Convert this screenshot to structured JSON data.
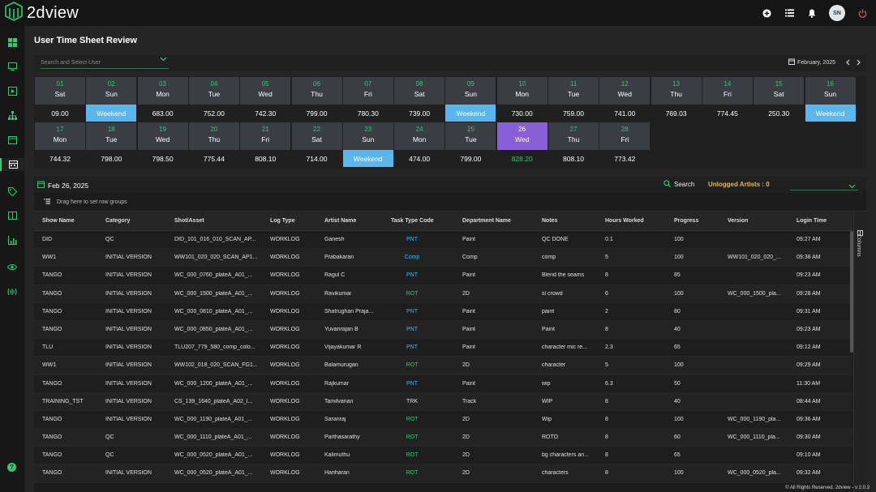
{
  "app": {
    "name": "2dview",
    "avatar_initials": "SN"
  },
  "page": {
    "title": "User Time Sheet Review"
  },
  "toolbar": {
    "user_placeholder": "Search and Select User",
    "month_label": "February, 2025"
  },
  "calendar": {
    "days": [
      {
        "num": "01",
        "name": "Sat",
        "value": "09.00",
        "weekend": false
      },
      {
        "num": "02",
        "name": "Sun",
        "value": "Weekend",
        "weekend": true
      },
      {
        "num": "03",
        "name": "Mon",
        "value": "683.00",
        "weekend": false
      },
      {
        "num": "04",
        "name": "Tue",
        "value": "752.00",
        "weekend": false
      },
      {
        "num": "05",
        "name": "Wed",
        "value": "742.30",
        "weekend": false
      },
      {
        "num": "06",
        "name": "Thu",
        "value": "799.00",
        "weekend": false
      },
      {
        "num": "07",
        "name": "Fri",
        "value": "780.30",
        "weekend": false
      },
      {
        "num": "08",
        "name": "Sat",
        "value": "739.00",
        "weekend": false
      },
      {
        "num": "09",
        "name": "Sun",
        "value": "Weekend",
        "weekend": true
      },
      {
        "num": "10",
        "name": "Mon",
        "value": "730.00",
        "weekend": false
      },
      {
        "num": "11",
        "name": "Tue",
        "value": "759.00",
        "weekend": false
      },
      {
        "num": "12",
        "name": "Wed",
        "value": "741.00",
        "weekend": false
      },
      {
        "num": "13",
        "name": "Thu",
        "value": "769.03",
        "weekend": false
      },
      {
        "num": "14",
        "name": "Fri",
        "value": "774.45",
        "weekend": false
      },
      {
        "num": "15",
        "name": "Sat",
        "value": "250.30",
        "weekend": false
      },
      {
        "num": "16",
        "name": "Sun",
        "value": "Weekend",
        "weekend": true
      },
      {
        "num": "17",
        "name": "Mon",
        "value": "744.32",
        "weekend": false
      },
      {
        "num": "18",
        "name": "Tue",
        "value": "798.00",
        "weekend": false
      },
      {
        "num": "19",
        "name": "Wed",
        "value": "798.50",
        "weekend": false
      },
      {
        "num": "20",
        "name": "Thu",
        "value": "775.44",
        "weekend": false
      },
      {
        "num": "21",
        "name": "Fri",
        "value": "808.10",
        "weekend": false
      },
      {
        "num": "22",
        "name": "Sat",
        "value": "714.00",
        "weekend": false
      },
      {
        "num": "23",
        "name": "Sun",
        "value": "Weekend",
        "weekend": true
      },
      {
        "num": "24",
        "name": "Mon",
        "value": "474.00",
        "weekend": false
      },
      {
        "num": "25",
        "name": "Tue",
        "value": "799.00",
        "weekend": false
      },
      {
        "num": "26",
        "name": "Wed",
        "value": "828.20",
        "weekend": false,
        "selected": true
      },
      {
        "num": "27",
        "name": "Thu",
        "value": "808.10",
        "weekend": false
      },
      {
        "num": "28",
        "name": "Fri",
        "value": "773.42",
        "weekend": false
      }
    ]
  },
  "datebar": {
    "date": "Feb 26, 2025",
    "search_label": "Search",
    "unlogged_label": "Unlogged Artists : 0"
  },
  "grid": {
    "group_hint": "Drag here to set row groups",
    "columns_label": "Columns",
    "headers": [
      "Show Name",
      "Category",
      "Shot/Asset",
      "Log Type",
      "Artist Name",
      "Task Type Code",
      "Department Name",
      "Notes",
      "Hours Worked",
      "Progress",
      "Version",
      "Login Time"
    ],
    "rows": [
      [
        "DID",
        "QC",
        "DID_101_016_010_SCAN_AP...",
        "WORKLOG",
        "Ganesh",
        "PNT",
        "Paint",
        "QC DONE",
        "0.1",
        "100",
        "",
        "09:27 AM"
      ],
      [
        "WW1",
        "INITIAL VERSION",
        "WW101_020_020_SCAN_AP1...",
        "WORKLOG",
        "Prabakaran",
        "Comp",
        "Comp",
        "comp",
        "5",
        "100",
        "WW101_020_020_...",
        "09:38 AM"
      ],
      [
        "TANGO",
        "INITIAL VERSION",
        "WC_000_0760_plateA_A01_...",
        "WORKLOG",
        "Ragul C",
        "PNT",
        "Paint",
        "Blend the seams",
        "8",
        "85",
        "",
        "09:23 AM"
      ],
      [
        "TANGO",
        "INITIAL VERSION",
        "WC_000_1500_plateA_A01_...",
        "WORKLOG",
        "Ravikumar",
        "ROT",
        "2D",
        "sl crowd",
        "6",
        "100",
        "WC_000_1500_pla...",
        "09:28 AM"
      ],
      [
        "TANGO",
        "INITIAL VERSION",
        "WC_000_0810_plateA_A01_...",
        "WORKLOG",
        "Shatrughan Praja...",
        "PNT",
        "Paint",
        "paint",
        "2",
        "80",
        "",
        "09:31 AM"
      ],
      [
        "TANGO",
        "INITIAL VERSION",
        "WC_000_0850_plateA_A01_...",
        "WORKLOG",
        "Yuvanrajan B",
        "PNT",
        "Paint",
        "Paint",
        "8",
        "40",
        "",
        "09:23 AM"
      ],
      [
        "TLU",
        "INITIAL VERSION",
        "TLU207_779_580_comp_colo...",
        "WORKLOG",
        "Vijayakumar R",
        "PNT",
        "Paint",
        "character mic re...",
        "2.3",
        "65",
        "",
        "09:12 AM"
      ],
      [
        "WW1",
        "INITIAL VERSION",
        "WW102_018_020_SCAN_FG1...",
        "WORKLOG",
        "Balamurugan",
        "ROT",
        "2D",
        "character",
        "5",
        "100",
        "",
        "09:29 AM"
      ],
      [
        "TANGO",
        "INITIAL VERSION",
        "WC_000_1200_plateA_A01_...",
        "WORKLOG",
        "Rajkumar",
        "PNT",
        "Paint",
        "wip",
        "6.3",
        "50",
        "",
        "11:30 AM"
      ],
      [
        "TRAINING_TST",
        "INITIAL VERSION",
        "CS_139_1640_plateA_A02_l...",
        "WORKLOG",
        "Tamilvanan",
        "TRK",
        "Track",
        "WIP",
        "8",
        "40",
        "",
        "08:44 AM"
      ],
      [
        "TANGO",
        "INITIAL VERSION",
        "WC_000_1190_plateA_A01_...",
        "WORKLOG",
        "Saranraj",
        "ROT",
        "2D",
        "Wip",
        "8",
        "100",
        "WC_000_1190_pla...",
        "09:36 AM"
      ],
      [
        "TANGO",
        "QC",
        "WC_000_1110_plateA_A01_...",
        "WORKLOG",
        "Parthasarathy",
        "ROT",
        "2D",
        "ROTO",
        "8",
        "60",
        "WC_000_1110_pla...",
        "09:30 AM"
      ],
      [
        "TANGO",
        "QC",
        "WC_000_0520_plateA_A01_...",
        "WORKLOG",
        "Kalimuthu",
        "ROT",
        "2D",
        "bg characters an...",
        "8",
        "65",
        "",
        "09:10 AM"
      ],
      [
        "TANGO",
        "INITIAL VERSION",
        "WC_000_0520_plateA_A01_...",
        "WORKLOG",
        "Hariharan",
        "ROT",
        "2D",
        "characters",
        "8",
        "100",
        "WC_000_0520_pla...",
        "09:32 AM"
      ]
    ]
  },
  "task_colors": {
    "PNT": "#38b6f0",
    "Comp": "#38b6f0",
    "ROT": "#2ecc71",
    "TRK": "#e0e0e0"
  },
  "footer": {
    "text": "© All Rights Reserved. 2dview - v 2.0.3"
  },
  "colors": {
    "accent": "#2ecc71",
    "weekend": "#5ab7ee",
    "selected": "#8a5fd6",
    "unlogged": "#e8b84a",
    "logout": "#e5484d"
  }
}
